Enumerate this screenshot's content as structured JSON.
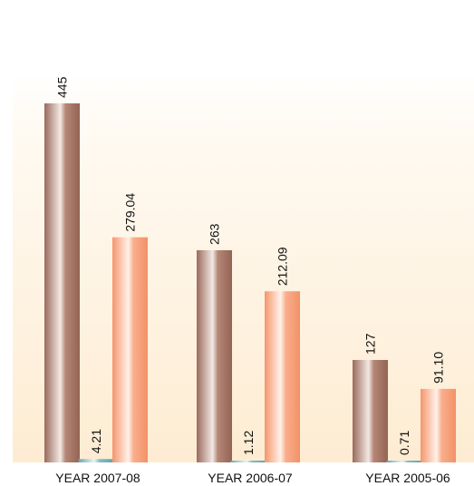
{
  "chart_data": {
    "type": "bar",
    "categories": [
      "YEAR 2007-08",
      "YEAR 2006-07",
      "YEAR 2005-06"
    ],
    "series": [
      {
        "values": [
          445,
          263,
          127
        ],
        "labels": [
          "445",
          "263",
          "127"
        ],
        "color": "#a87868"
      },
      {
        "values": [
          4.21,
          1.12,
          0.71
        ],
        "labels": [
          "4.21",
          "1.12",
          "0.71"
        ],
        "color": "#7fb6bd"
      },
      {
        "values": [
          279.04,
          212.09,
          91.1
        ],
        "labels": [
          "279.04",
          "212.09",
          "91.10"
        ],
        "color": "#f7a07a"
      }
    ],
    "xlabel": "",
    "ylabel": "",
    "ylim": [
      0,
      445
    ],
    "grid": false,
    "legend": "none",
    "background": "#fdf1dd"
  }
}
